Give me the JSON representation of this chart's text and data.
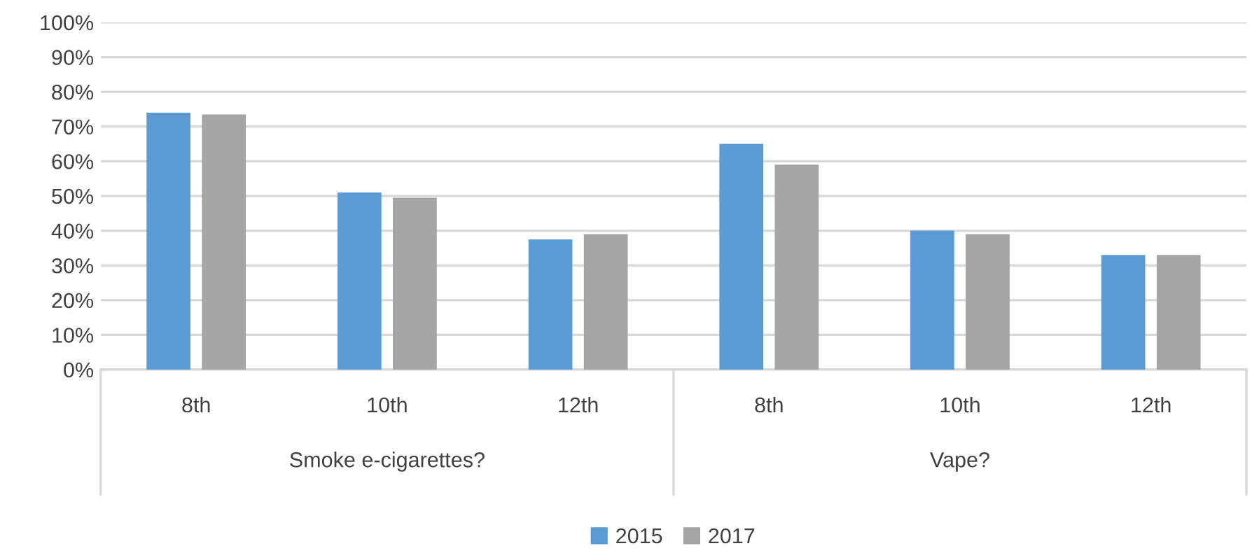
{
  "chart_data": {
    "type": "bar",
    "categories": [
      "8th",
      "10th",
      "12th",
      "8th",
      "10th",
      "12th"
    ],
    "series": [
      {
        "name": "2015",
        "color": "#5b9bd5",
        "values": [
          74,
          51,
          37.5,
          65,
          40,
          33
        ]
      },
      {
        "name": "2017",
        "color": "#a5a5a5",
        "values": [
          73.5,
          49.5,
          39,
          59,
          39,
          33
        ]
      }
    ],
    "annotations": [
      "Smoke e-cigarettes?",
      "Vape?"
    ],
    "ylim": [
      0,
      100
    ],
    "yticks": [
      {
        "value": 0,
        "label": "0%"
      },
      {
        "value": 10,
        "label": "10%"
      },
      {
        "value": 20,
        "label": "20%"
      },
      {
        "value": 30,
        "label": "30%"
      },
      {
        "value": 40,
        "label": "40%"
      },
      {
        "value": 50,
        "label": "50%"
      },
      {
        "value": 60,
        "label": "60%"
      },
      {
        "value": 70,
        "label": "70%"
      },
      {
        "value": 80,
        "label": "80%"
      },
      {
        "value": 90,
        "label": "90%"
      },
      {
        "value": 100,
        "label": "100%"
      }
    ],
    "grid": "y",
    "legend": "bottom"
  }
}
